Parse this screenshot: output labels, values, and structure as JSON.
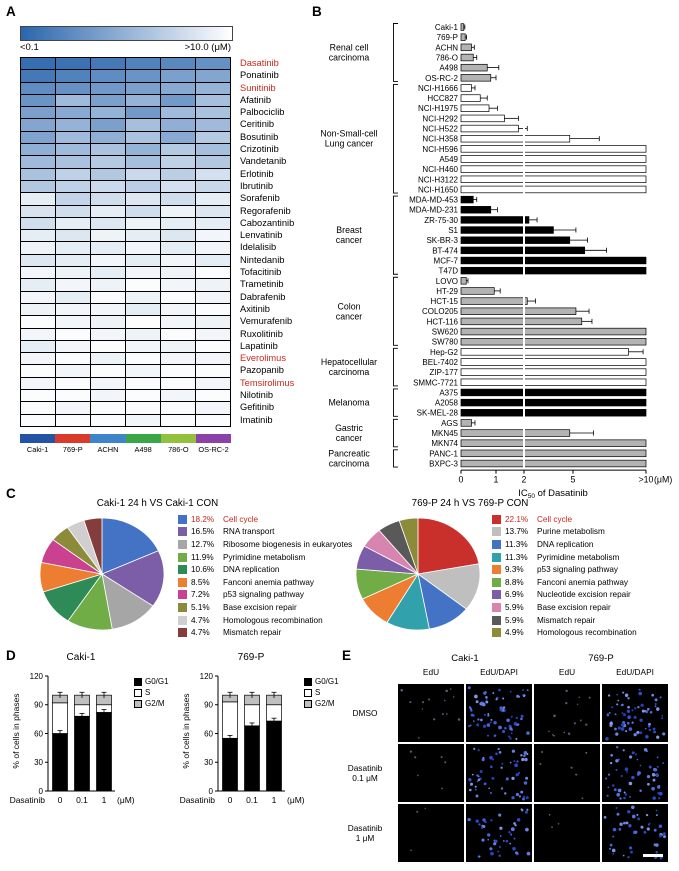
{
  "colors": {
    "highlight_red": "#c8281e",
    "heatmap_dark": "#2a66ad",
    "bar_gray": "#b3b3b3"
  },
  "panels": {
    "A": {
      "label": "A",
      "scale": {
        "min_label": "<0.1",
        "max_label": ">10.0",
        "unit": "(μM)"
      },
      "drugs": [
        {
          "name": "Dasatinib",
          "red": true
        },
        {
          "name": "Ponatinib"
        },
        {
          "name": "Sunitinib",
          "red": true
        },
        {
          "name": "Afatinib"
        },
        {
          "name": "Palbociclib"
        },
        {
          "name": "Ceritinib"
        },
        {
          "name": "Bosutinib"
        },
        {
          "name": "Crizotinib"
        },
        {
          "name": "Vandetanib"
        },
        {
          "name": "Erlotinib"
        },
        {
          "name": "Ibrutinib"
        },
        {
          "name": "Sorafenib"
        },
        {
          "name": "Regorafenib"
        },
        {
          "name": "Cabozantinib"
        },
        {
          "name": "Lenvatinib"
        },
        {
          "name": "Idelalisib"
        },
        {
          "name": "Nintedanib"
        },
        {
          "name": "Tofacitinib"
        },
        {
          "name": "Trametinib"
        },
        {
          "name": "Dabrafenib"
        },
        {
          "name": "Axitinib"
        },
        {
          "name": "Vemurafenib"
        },
        {
          "name": "Ruxolitinib"
        },
        {
          "name": "Lapatinib"
        },
        {
          "name": "Everolimus",
          "red": true
        },
        {
          "name": "Pazopanib"
        },
        {
          "name": "Temsirolimus",
          "red": true
        },
        {
          "name": "Nilotinib"
        },
        {
          "name": "Gefitinib"
        },
        {
          "name": "Imatinib"
        }
      ],
      "cell_lines": [
        {
          "name": "Caki-1",
          "color": "#2353a5"
        },
        {
          "name": "769-P",
          "color": "#d93a2b"
        },
        {
          "name": "ACHN",
          "color": "#3d85c8"
        },
        {
          "name": "A498",
          "color": "#3aa648"
        },
        {
          "name": "786-O",
          "color": "#94c13d"
        },
        {
          "name": "OS-RC-2",
          "color": "#8a42a8"
        }
      ],
      "shades": [
        [
          0.05,
          0.08,
          0.12,
          0.18,
          0.22,
          0.28
        ],
        [
          0.12,
          0.18,
          0.25,
          0.3,
          0.38,
          0.42
        ],
        [
          0.25,
          0.28,
          0.33,
          0.38,
          0.44,
          0.5
        ],
        [
          0.3,
          0.55,
          0.38,
          0.5,
          0.34,
          0.58
        ],
        [
          0.38,
          0.44,
          0.5,
          0.34,
          0.55,
          0.6
        ],
        [
          0.42,
          0.5,
          0.38,
          0.58,
          0.48,
          0.55
        ],
        [
          0.4,
          0.55,
          0.48,
          0.6,
          0.44,
          0.65
        ],
        [
          0.48,
          0.55,
          0.6,
          0.5,
          0.65,
          0.58
        ],
        [
          0.55,
          0.6,
          0.65,
          0.58,
          0.7,
          0.64
        ],
        [
          0.6,
          0.7,
          0.64,
          0.75,
          0.68,
          0.8
        ],
        [
          0.64,
          0.7,
          0.75,
          0.68,
          0.8,
          0.74
        ],
        [
          0.88,
          0.72,
          0.78,
          0.84,
          0.78,
          0.88
        ],
        [
          0.82,
          0.78,
          0.88,
          0.78,
          0.92,
          0.84
        ],
        [
          0.78,
          0.88,
          0.84,
          0.92,
          0.88,
          0.88
        ],
        [
          0.88,
          0.84,
          0.92,
          0.88,
          0.84,
          0.94
        ],
        [
          0.92,
          0.88,
          0.88,
          0.94,
          0.88,
          0.94
        ],
        [
          0.84,
          0.88,
          0.94,
          0.88,
          0.94,
          0.88
        ],
        [
          0.94,
          0.92,
          0.88,
          0.94,
          0.92,
          0.98
        ],
        [
          0.88,
          0.94,
          0.92,
          0.98,
          0.94,
          0.92
        ],
        [
          0.94,
          0.88,
          0.98,
          0.92,
          0.98,
          0.94
        ],
        [
          0.92,
          0.94,
          0.94,
          0.88,
          0.94,
          0.98
        ],
        [
          0.98,
          0.94,
          0.92,
          0.98,
          0.94,
          0.92
        ],
        [
          0.94,
          0.98,
          0.94,
          0.92,
          0.98,
          0.94
        ],
        [
          0.88,
          0.94,
          0.98,
          0.94,
          0.92,
          0.98
        ],
        [
          0.94,
          0.98,
          0.92,
          0.98,
          0.94,
          0.94
        ],
        [
          0.98,
          0.94,
          0.98,
          0.94,
          0.98,
          0.98
        ],
        [
          0.94,
          0.98,
          0.94,
          0.98,
          0.98,
          0.94
        ],
        [
          0.98,
          0.98,
          0.94,
          0.98,
          0.94,
          0.98
        ],
        [
          0.98,
          0.94,
          0.98,
          0.98,
          0.98,
          0.94
        ],
        [
          0.98,
          0.98,
          0.98,
          0.94,
          0.98,
          0.98
        ]
      ]
    },
    "B": {
      "label": "B",
      "axis": {
        "ticks": [
          "0",
          "1",
          "2",
          "5",
          ">10"
        ],
        "tick_values": [
          0,
          1,
          2,
          5,
          10
        ],
        "unit": "(μM)",
        "title_pre": "IC",
        "title_sub": "50",
        "title_post": " of Dasatinib",
        "ref_value": 2
      },
      "groups": [
        {
          "name_lines": [
            "Renal cell",
            "carcinoma"
          ],
          "fill": "#b3b3b3",
          "lines": [
            {
              "name": "Caki-1",
              "v": 0.08,
              "e": 0.03
            },
            {
              "name": "769-P",
              "v": 0.12,
              "e": 0.04
            },
            {
              "name": "ACHN",
              "v": 0.3,
              "e": 0.08
            },
            {
              "name": "786-O",
              "v": 0.35,
              "e": 0.1
            },
            {
              "name": "A498",
              "v": 0.75,
              "e": 0.35
            },
            {
              "name": "OS-RC-2",
              "v": 0.85,
              "e": 0.15
            }
          ]
        },
        {
          "name_lines": [
            "Non-Small-cell",
            "Lung cancer"
          ],
          "fill": "#ffffff",
          "lines": [
            {
              "name": "NCI-H1666",
              "v": 0.3,
              "e": 0.1
            },
            {
              "name": "HCC827",
              "v": 0.55,
              "e": 0.2
            },
            {
              "name": "NCI-H1975",
              "v": 0.8,
              "e": 0.25
            },
            {
              "name": "NCI-H292",
              "v": 1.3,
              "e": 0.5
            },
            {
              "name": "NCI-H522",
              "v": 1.8,
              "e": 0.4
            },
            {
              "name": "NCI-H358",
              "v": 4.8,
              "e": 2.0
            },
            {
              "name": "NCI-H596",
              "v": 10,
              "e": 0
            },
            {
              "name": "A549",
              "v": 10,
              "e": 0
            },
            {
              "name": "NCI-H460",
              "v": 10,
              "e": 0
            },
            {
              "name": "NCI-H3122",
              "v": 10,
              "e": 0
            },
            {
              "name": "NCI-H1650",
              "v": 10,
              "e": 0
            }
          ]
        },
        {
          "name_lines": [
            "Breast",
            "cancer"
          ],
          "fill": "#000000",
          "lines": [
            {
              "name": "MDA-MD-453",
              "v": 0.35,
              "e": 0.1
            },
            {
              "name": "MDA-MD-231",
              "v": 0.85,
              "e": 0.2
            },
            {
              "name": "ZR-75-30",
              "v": 2.3,
              "e": 0.5
            },
            {
              "name": "S1",
              "v": 3.8,
              "e": 1.4
            },
            {
              "name": "SK-BR-3",
              "v": 4.8,
              "e": 1.2
            },
            {
              "name": "BT-474",
              "v": 5.8,
              "e": 1.5
            },
            {
              "name": "MCF-7",
              "v": 10,
              "e": 0
            },
            {
              "name": "T47D",
              "v": 10,
              "e": 0
            }
          ]
        },
        {
          "name_lines": [
            "Colon",
            "cancer"
          ],
          "fill": "#b3b3b3",
          "lines": [
            {
              "name": "LOVO",
              "v": 0.15,
              "e": 0.05
            },
            {
              "name": "HT-29",
              "v": 0.95,
              "e": 0.2
            },
            {
              "name": "HCT-15",
              "v": 2.2,
              "e": 0.5
            },
            {
              "name": "COLO205",
              "v": 5.2,
              "e": 0.9
            },
            {
              "name": "HCT-116",
              "v": 5.6,
              "e": 0.7
            },
            {
              "name": "SW620",
              "v": 10,
              "e": 0
            },
            {
              "name": "SW780",
              "v": 10,
              "e": 0
            }
          ]
        },
        {
          "name_lines": [
            "Hepatocellular",
            "carcinoma"
          ],
          "fill": "#ffffff",
          "lines": [
            {
              "name": "Hep-G2",
              "v": 8.8,
              "e": 1.0
            },
            {
              "name": "BEL-7402",
              "v": 10,
              "e": 0
            },
            {
              "name": "ZIP-177",
              "v": 10,
              "e": 0
            },
            {
              "name": "SMMC-7721",
              "v": 10,
              "e": 0
            }
          ]
        },
        {
          "name_lines": [
            "Melanoma"
          ],
          "fill": "#000000",
          "lines": [
            {
              "name": "A375",
              "v": 10,
              "e": 0
            },
            {
              "name": "A2058",
              "v": 10,
              "e": 0
            },
            {
              "name": "SK-MEL-28",
              "v": 10,
              "e": 0
            }
          ]
        },
        {
          "name_lines": [
            "Gastric",
            "cancer"
          ],
          "fill": "#b3b3b3",
          "lines": [
            {
              "name": "AGS",
              "v": 0.3,
              "e": 0.1
            },
            {
              "name": "MKN45",
              "v": 4.8,
              "e": 1.6
            },
            {
              "name": "MKN74",
              "v": 10,
              "e": 0
            }
          ]
        },
        {
          "name_lines": [
            "Pancreatic",
            "carcinoma"
          ],
          "fill": "#b3b3b3",
          "lines": [
            {
              "name": "PANC-1",
              "v": 10,
              "e": 0
            },
            {
              "name": "BXPC-3",
              "v": 10,
              "e": 0
            }
          ]
        }
      ]
    },
    "C": {
      "label": "C",
      "left": {
        "title": "Caki-1 24 h VS Caki-1 CON",
        "entries": [
          {
            "pct": "18.2%",
            "label": "Cell cycle",
            "color": "#4472C4",
            "red": true
          },
          {
            "pct": "16.5%",
            "label": "RNA transport",
            "color": "#7B5EA7"
          },
          {
            "pct": "12.7%",
            "label": "Ribosome biogenesis in eukaryotes",
            "color": "#A6A6A6"
          },
          {
            "pct": "11.9%",
            "label": "Pyrimidine metabolism",
            "color": "#70AD47"
          },
          {
            "pct": "10.6%",
            "label": "DNA replication",
            "color": "#2E8B57"
          },
          {
            "pct": "8.5%",
            "label": "Fanconi anemia pathway",
            "color": "#ED7D31"
          },
          {
            "pct": "7.2%",
            "label": "p53 signaling pathway",
            "color": "#C9418F"
          },
          {
            "pct": "5.1%",
            "label": "Base excision repair",
            "color": "#8B8B3A"
          },
          {
            "pct": "4.7%",
            "label": "Homologous recombination",
            "color": "#D0CECE"
          },
          {
            "pct": "4.7%",
            "label": "Mismatch repair",
            "color": "#843C3C"
          }
        ]
      },
      "right": {
        "title": "769-P 24 h VS 769-P CON",
        "entries": [
          {
            "pct": "22.1%",
            "label": "Cell cycle",
            "color": "#C9302C",
            "red": true
          },
          {
            "pct": "13.7%",
            "label": "Purine metabolism",
            "color": "#BFBFBF"
          },
          {
            "pct": "11.3%",
            "label": "DNA replication",
            "color": "#4472C4"
          },
          {
            "pct": "11.3%",
            "label": "Pyrimidine metabolism",
            "color": "#31A2AC"
          },
          {
            "pct": "9.3%",
            "label": "p53 signaling pathway",
            "color": "#ED7D31"
          },
          {
            "pct": "8.8%",
            "label": "Fanconi anemia pathway",
            "color": "#70AD47"
          },
          {
            "pct": "6.9%",
            "label": "Nucleotide excision repair",
            "color": "#7B5EA7"
          },
          {
            "pct": "5.9%",
            "label": "Base excision repair",
            "color": "#D884B0"
          },
          {
            "pct": "5.9%",
            "label": "Mismatch repair",
            "color": "#595959"
          },
          {
            "pct": "4.9%",
            "label": "Homologous recombination",
            "color": "#8B8B3A"
          }
        ]
      }
    },
    "D": {
      "label": "D",
      "ylabel": "% of cells in phases",
      "yticks": [
        0,
        30,
        60,
        90,
        120
      ],
      "xlabel_drug": "Dasatinib",
      "xunit": "(μM)",
      "phases": [
        {
          "name": "G0/G1",
          "color": "#000000"
        },
        {
          "name": "S",
          "color": "#ffffff"
        },
        {
          "name": "G2/M",
          "color": "#bfbfbf"
        }
      ],
      "charts": [
        {
          "title": "Caki-1",
          "doses": [
            "0",
            "0.1",
            "1"
          ],
          "values": [
            [
              60,
              32,
              8
            ],
            [
              78,
              12,
              10
            ],
            [
              82,
              8,
              10
            ]
          ]
        },
        {
          "title": "769-P",
          "doses": [
            "0",
            "0.1",
            "1"
          ],
          "values": [
            [
              55,
              38,
              7
            ],
            [
              68,
              22,
              10
            ],
            [
              73,
              17,
              10
            ]
          ]
        }
      ]
    },
    "E": {
      "label": "E",
      "col_groups": [
        "Caki-1",
        "769-P"
      ],
      "sub_cols": [
        "EdU",
        "EdU/DAPI",
        "EdU",
        "EdU/DAPI"
      ],
      "rows": [
        {
          "label_lines": [
            "DMSO"
          ],
          "edu_dots": 14,
          "dapi_dots": 70
        },
        {
          "label_lines": [
            "Dasatinib",
            "0.1 μM"
          ],
          "edu_dots": 6,
          "dapi_dots": 55
        },
        {
          "label_lines": [
            "Dasatinib",
            "1 μM"
          ],
          "edu_dots": 3,
          "dapi_dots": 45
        }
      ],
      "dapi_color": "#4053c8",
      "edu_color": "#aebcf0"
    }
  }
}
